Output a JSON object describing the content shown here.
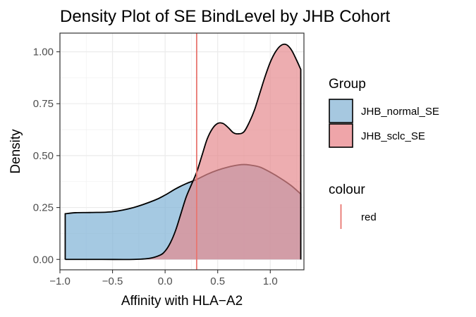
{
  "chart_data": {
    "type": "area",
    "title": "Density Plot of SE BindLevel by JHB Cohort",
    "xlabel": "Affinity with HLA−A2",
    "ylabel": "Density",
    "xlim": [
      -1.0,
      1.32
    ],
    "ylim": [
      -0.05,
      1.09
    ],
    "x_ticks": [
      -1.0,
      -0.5,
      0.0,
      0.5,
      1.0
    ],
    "x_tick_labels": [
      "−1.0",
      "−0.5",
      "0.0",
      "0.5",
      "1.0"
    ],
    "y_ticks": [
      0.0,
      0.25,
      0.5,
      0.75,
      1.0
    ],
    "y_tick_labels": [
      "0.00",
      "0.25",
      "0.50",
      "0.75",
      "1.00"
    ],
    "grid": true,
    "legend_position": "right",
    "series": [
      {
        "name": "JHB_normal_SE",
        "fill": "#7fb2d5",
        "x": [
          -0.95,
          -0.85,
          -0.7,
          -0.5,
          -0.3,
          -0.1,
          0.0,
          0.1,
          0.2,
          0.3,
          0.4,
          0.5,
          0.6,
          0.7,
          0.75,
          0.8,
          0.9,
          1.0,
          1.1,
          1.2,
          1.29
        ],
        "y": [
          0.22,
          0.225,
          0.226,
          0.23,
          0.25,
          0.285,
          0.31,
          0.34,
          0.365,
          0.385,
          0.41,
          0.43,
          0.445,
          0.455,
          0.457,
          0.455,
          0.445,
          0.42,
          0.39,
          0.355,
          0.315
        ]
      },
      {
        "name": "JHB_sclc_SE",
        "fill": "#e68a8f",
        "x": [
          -0.95,
          -0.6,
          -0.3,
          -0.15,
          -0.05,
          0.0,
          0.05,
          0.1,
          0.15,
          0.2,
          0.25,
          0.3,
          0.35,
          0.4,
          0.45,
          0.5,
          0.55,
          0.6,
          0.65,
          0.7,
          0.75,
          0.8,
          0.85,
          0.9,
          0.95,
          1.0,
          1.05,
          1.1,
          1.15,
          1.2,
          1.25,
          1.29
        ],
        "y": [
          0.0,
          0.0,
          0.0,
          0.005,
          0.02,
          0.04,
          0.08,
          0.14,
          0.22,
          0.3,
          0.36,
          0.42,
          0.5,
          0.58,
          0.63,
          0.655,
          0.655,
          0.635,
          0.61,
          0.605,
          0.615,
          0.66,
          0.72,
          0.8,
          0.88,
          0.95,
          1.0,
          1.03,
          1.035,
          1.01,
          0.96,
          0.915
        ]
      }
    ],
    "vline": {
      "x": 0.3,
      "color": "#e87670"
    },
    "legends": [
      {
        "title": "Group",
        "items": [
          {
            "label": "JHB_normal_SE"
          },
          {
            "label": "JHB_sclc_SE"
          }
        ]
      },
      {
        "title": "colour",
        "items": [
          {
            "label": "red",
            "color": "#e87670"
          }
        ]
      }
    ]
  }
}
